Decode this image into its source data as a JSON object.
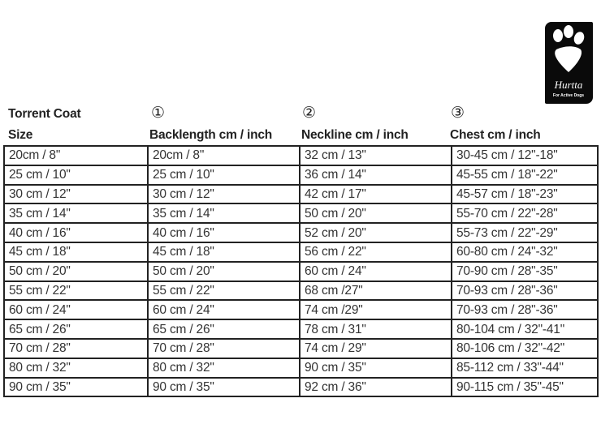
{
  "logo": {
    "brand": "Hurtta",
    "tagline": "For Active Dogs",
    "icon": "paw-icon"
  },
  "headers": {
    "title": "Torrent Coat",
    "columns": [
      {
        "marker": "",
        "label": "Size"
      },
      {
        "marker": "①",
        "label": "Backlength  cm / inch"
      },
      {
        "marker": "②",
        "label": "Neckline cm / inch"
      },
      {
        "marker": "③",
        "label": "Chest cm / inch"
      }
    ]
  },
  "rows": [
    [
      "20cm / 8\"",
      "20cm / 8\"",
      "32 cm / 13\"",
      "30-45 cm / 12\"-18\""
    ],
    [
      "25 cm / 10\"",
      "25 cm / 10\"",
      "36 cm / 14\"",
      "45-55 cm / 18\"-22\""
    ],
    [
      "30 cm / 12\"",
      "30 cm / 12\"",
      "42 cm / 17\"",
      "45-57 cm / 18\"-23\""
    ],
    [
      "35 cm / 14\"",
      "35 cm / 14\"",
      "50 cm / 20\"",
      "55-70 cm / 22\"-28\""
    ],
    [
      "40 cm / 16\"",
      "40 cm / 16\"",
      "52 cm / 20\"",
      "55-73 cm / 22\"-29\""
    ],
    [
      "45 cm / 18\"",
      "45 cm / 18\"",
      "56 cm / 22\"",
      "60-80 cm / 24\"-32\""
    ],
    [
      "50 cm / 20\"",
      "50 cm / 20\"",
      "60 cm / 24\"",
      "70-90 cm / 28\"-35\""
    ],
    [
      "55 cm / 22\"",
      "55 cm / 22\"",
      "68 cm /27\"",
      "70-93 cm / 28\"-36\""
    ],
    [
      "60 cm / 24\"",
      "60 cm / 24\"",
      "74 cm /29\"",
      "70-93 cm / 28\"-36\""
    ],
    [
      "65 cm / 26\"",
      "65 cm / 26\"",
      "78 cm / 31\"",
      "80-104 cm / 32\"-41\""
    ],
    [
      "70 cm / 28\"",
      "70 cm / 28\"",
      "74 cm / 29\"",
      "80-106 cm / 32\"-42\""
    ],
    [
      "80 cm / 32\"",
      "80 cm / 32\"",
      "90 cm / 35\"",
      "85-112 cm / 33\"-44\""
    ],
    [
      "90 cm / 35\"",
      "90 cm / 35\"",
      "92 cm / 36\"",
      "90-115 cm / 35\"-45\""
    ]
  ]
}
